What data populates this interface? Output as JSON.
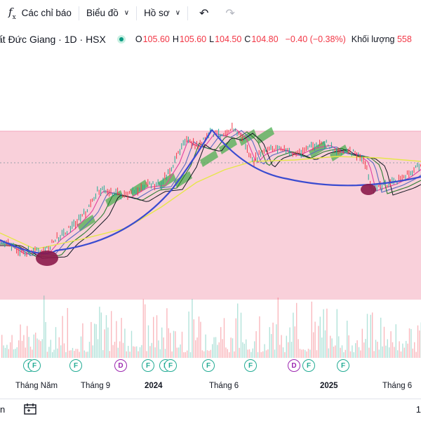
{
  "toolbar": {
    "indicators_label": "Các chỉ báo",
    "chart_type_label": "Biểu đồ",
    "profile_label": "Hồ sơ"
  },
  "legend": {
    "symbol_title": "ất Đức Giang · 1D · HSX",
    "open_label": "O",
    "open_value": "105.60",
    "high_label": "H",
    "high_value": "105.60",
    "low_label": "L",
    "low_value": "104.50",
    "close_label": "C",
    "close_value": "104.80",
    "change": "−0.40 (−0.38%)",
    "volume_label": "Khối lượng",
    "volume_value": "558"
  },
  "events": [
    "F",
    "F",
    "F",
    "D",
    "F",
    "F",
    "F",
    "F",
    "F",
    "D",
    "F",
    "F"
  ],
  "time_axis": {
    "labels": [
      "Tháng Năm",
      "Tháng 9",
      "2024",
      "Tháng 6",
      "2025",
      "Tháng 6"
    ]
  },
  "bottom_bar": {
    "left_text": "n",
    "right_text": "1"
  },
  "colors": {
    "up": "#22ab94",
    "down": "#f23645",
    "zone_fill": "#f8c8d4",
    "arc": "#3a4bd0",
    "ema_long": "#e6e64a",
    "cloud": "#4caf50",
    "marker": "#8b1a4a"
  }
}
